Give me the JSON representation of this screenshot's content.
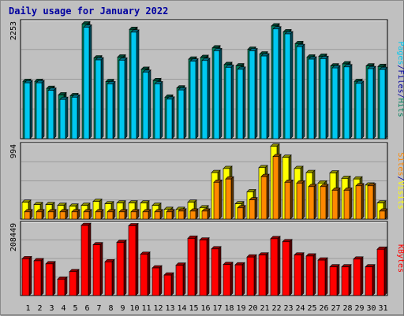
{
  "title": "Daily usage for January 2022",
  "colors": {
    "background": "#c0c0c0",
    "panel": "#c0c0c0",
    "grid": "#9a9a9a",
    "hits": "#00805c",
    "files": "#00c8f0",
    "pages": "#0000a0",
    "visits": "#ffff00",
    "sites": "#ff8800",
    "kbytes": "#ff0000",
    "weekend_day": "#00805c",
    "weekday": "#000080"
  },
  "legend": {
    "hits": "Hits",
    "files": "Files",
    "pages": "Pages",
    "visits": "Visits",
    "sites": "Sites",
    "kbytes": "KBytes",
    "separator": "/"
  },
  "chart_data": [
    {
      "type": "bar",
      "panel": "hits-files",
      "max_label": "2253",
      "ylim": [
        0,
        2253
      ],
      "categories": [
        "1",
        "2",
        "3",
        "4",
        "5",
        "6",
        "7",
        "8",
        "9",
        "10",
        "11",
        "12",
        "13",
        "14",
        "15",
        "16",
        "17",
        "18",
        "19",
        "20",
        "21",
        "22",
        "23",
        "24",
        "25",
        "26",
        "27",
        "28",
        "29",
        "30",
        "31"
      ],
      "series": [
        {
          "name": "Hits",
          "values": [
            1115,
            1115,
            978,
            851,
            836,
            2232,
            1571,
            1110,
            1587,
            2125,
            1349,
            1130,
            807,
            986,
            1547,
            1579,
            1765,
            1442,
            1417,
            1738,
            1647,
            2193,
            2078,
            1848,
            1587,
            1602,
            1415,
            1456,
            1115,
            1415,
            1405
          ]
        },
        {
          "name": "Files",
          "values": [
            1086,
            1086,
            939,
            763,
            807,
            2168,
            1532,
            1066,
            1527,
            2071,
            1291,
            1066,
            768,
            947,
            1508,
            1520,
            1710,
            1388,
            1349,
            1709,
            1608,
            2134,
            2038,
            1790,
            1547,
            1557,
            1376,
            1397,
            1076,
            1361,
            1346
          ]
        }
      ]
    },
    {
      "type": "bar",
      "panel": "sites-visits",
      "max_label": "994",
      "ylim": [
        0,
        994
      ],
      "categories": [
        "1",
        "2",
        "3",
        "4",
        "5",
        "6",
        "7",
        "8",
        "9",
        "10",
        "11",
        "12",
        "13",
        "14",
        "15",
        "16",
        "17",
        "18",
        "19",
        "20",
        "21",
        "22",
        "23",
        "24",
        "25",
        "26",
        "27",
        "28",
        "29",
        "30",
        "31"
      ],
      "series": [
        {
          "name": "Visits",
          "values": [
            228,
            196,
            196,
            185,
            174,
            185,
            239,
            207,
            217,
            217,
            217,
            185,
            130,
            130,
            228,
            152,
            630,
            685,
            206,
            369,
            697,
            988,
            837,
            685,
            630,
            488,
            625,
            551,
            543,
            461,
            217
          ]
        },
        {
          "name": "Sites",
          "values": [
            98,
            98,
            98,
            98,
            98,
            98,
            98,
            98,
            98,
            98,
            98,
            98,
            98,
            108,
            108,
            108,
            499,
            543,
            152,
            260,
            576,
            847,
            499,
            488,
            440,
            440,
            391,
            391,
            451,
            451,
            108
          ]
        }
      ]
    },
    {
      "type": "bar",
      "panel": "kbytes",
      "max_label": "208449",
      "ylim": [
        0,
        208449
      ],
      "categories": [
        "1",
        "2",
        "3",
        "4",
        "5",
        "6",
        "7",
        "8",
        "9",
        "10",
        "11",
        "12",
        "13",
        "14",
        "15",
        "16",
        "17",
        "18",
        "19",
        "20",
        "21",
        "22",
        "23",
        "24",
        "25",
        "26",
        "27",
        "28",
        "29",
        "30",
        "31"
      ],
      "series": [
        {
          "name": "KBytes",
          "values": [
            108000,
            102000,
            93000,
            48000,
            70000,
            206000,
            149000,
            99000,
            156000,
            205000,
            121000,
            81000,
            60000,
            89000,
            168000,
            163000,
            137000,
            91000,
            90000,
            113000,
            119000,
            167000,
            158000,
            119000,
            116000,
            104000,
            84000,
            84000,
            107000,
            84000,
            136000
          ]
        }
      ]
    }
  ]
}
